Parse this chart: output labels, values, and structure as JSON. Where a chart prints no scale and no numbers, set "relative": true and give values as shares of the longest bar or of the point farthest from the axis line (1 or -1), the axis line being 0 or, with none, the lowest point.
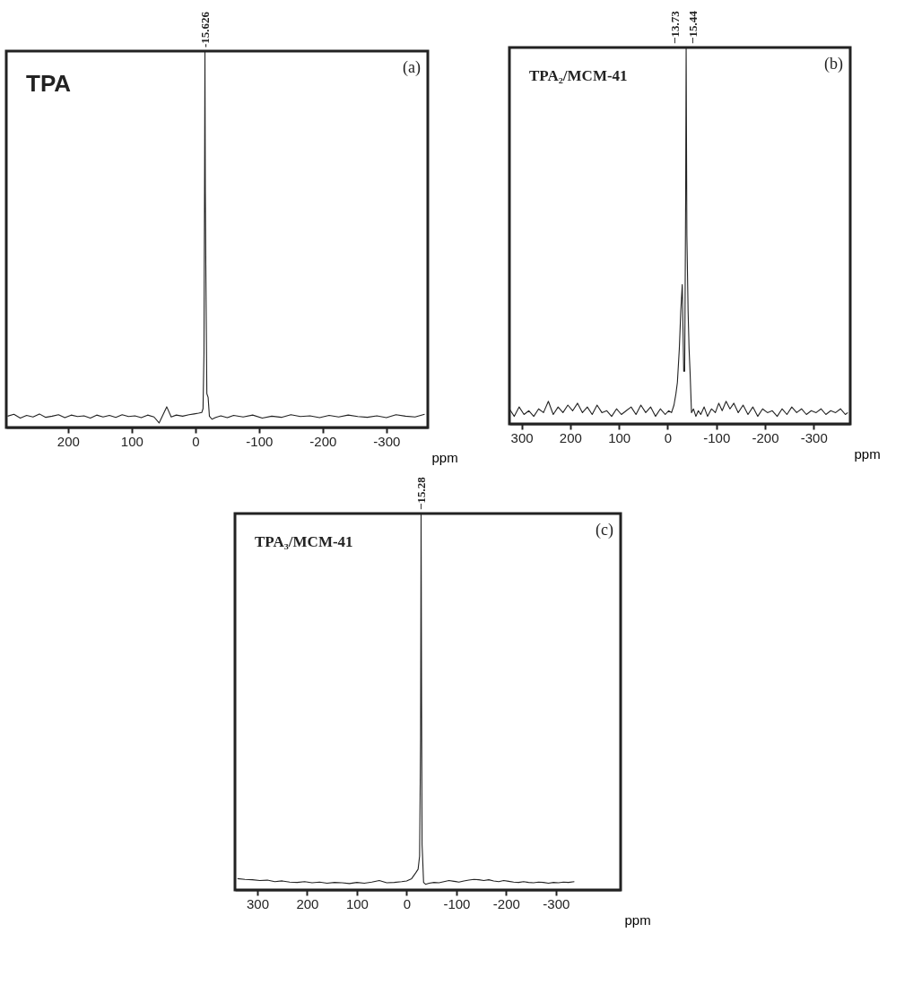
{
  "chart_data": [
    {
      "type": "line",
      "title": "TPA",
      "xlabel": "ppm",
      "relative": true,
      "color": "#222222",
      "xlim": [
        297,
        -365
      ],
      "xticks": [
        200,
        100,
        0,
        -100,
        -200,
        -300
      ],
      "grid": false,
      "annotations": [
        "(a)",
        {
          "text": "-15.626",
          "x": -15,
          "y": 1
        }
      ],
      "x": [
        295,
        285,
        275,
        265,
        255,
        245,
        235,
        225,
        215,
        205,
        195,
        185,
        175,
        165,
        155,
        145,
        135,
        125,
        115,
        105,
        95,
        85,
        75,
        65,
        57,
        52,
        45,
        38,
        30,
        20,
        10,
        2,
        -5,
        -10,
        -12,
        -13.5,
        -14.5,
        -15,
        -15.6,
        -16.5,
        -18,
        -20,
        -22,
        -26,
        -32,
        -40,
        -50,
        -60,
        -75,
        -90,
        -105,
        -120,
        -135,
        -150,
        -165,
        -180,
        -195,
        -210,
        -225,
        -240,
        -255,
        -270,
        -285,
        -300,
        -315,
        -330,
        -345,
        -360
      ],
      "values": [
        0.03,
        0.035,
        0.025,
        0.032,
        0.028,
        0.036,
        0.027,
        0.03,
        0.034,
        0.026,
        0.033,
        0.029,
        0.031,
        0.025,
        0.033,
        0.028,
        0.032,
        0.027,
        0.034,
        0.029,
        0.031,
        0.026,
        0.033,
        0.028,
        0.012,
        0.03,
        0.055,
        0.028,
        0.033,
        0.03,
        0.034,
        0.036,
        0.038,
        0.04,
        0.05,
        0.2,
        0.7,
        1,
        0.63,
        0.4,
        0.09,
        0.08,
        0.03,
        0.022,
        0.027,
        0.031,
        0.026,
        0.032,
        0.028,
        0.033,
        0.025,
        0.03,
        0.027,
        0.034,
        0.029,
        0.031,
        0.026,
        0.032,
        0.028,
        0.033,
        0.029,
        0.027,
        0.031,
        0.026,
        0.034,
        0.03,
        0.028,
        0.035
      ]
    },
    {
      "type": "line",
      "title": "TPA₂/MCM-41",
      "xlabel": "ppm",
      "relative": true,
      "color": "#222222",
      "xlim": [
        325,
        -375
      ],
      "xticks": [
        300,
        200,
        100,
        0,
        -100,
        -200,
        -300
      ],
      "grid": false,
      "annotations": [
        "(b)",
        {
          "text": "−13.73",
          "x": -30,
          "y": 1
        },
        {
          "text": "−15.44",
          "x": -38,
          "y": 1
        }
      ],
      "x": [
        325,
        315,
        305,
        295,
        285,
        275,
        265,
        255,
        245,
        235,
        225,
        215,
        205,
        195,
        185,
        175,
        165,
        155,
        145,
        135,
        125,
        115,
        105,
        95,
        85,
        75,
        65,
        55,
        45,
        35,
        25,
        15,
        5,
        -2,
        -8,
        -13,
        -17,
        -20,
        -24,
        -27,
        -30,
        -33,
        -35,
        -37,
        -38,
        -39.5,
        -42,
        -44,
        -46,
        -49,
        -53,
        -58,
        -63,
        -68,
        -75,
        -82,
        -90,
        -98,
        -105,
        -112,
        -120,
        -128,
        -136,
        -145,
        -155,
        -165,
        -175,
        -185,
        -195,
        -205,
        -215,
        -225,
        -235,
        -245,
        -255,
        -265,
        -275,
        -285,
        -295,
        -305,
        -315,
        -325,
        -335,
        -345,
        -355,
        -365,
        -370
      ],
      "values": [
        0.04,
        0.02,
        0.045,
        0.025,
        0.035,
        0.02,
        0.04,
        0.03,
        0.06,
        0.025,
        0.045,
        0.03,
        0.05,
        0.035,
        0.055,
        0.03,
        0.045,
        0.025,
        0.05,
        0.03,
        0.035,
        0.02,
        0.04,
        0.025,
        0.035,
        0.045,
        0.025,
        0.05,
        0.03,
        0.045,
        0.02,
        0.04,
        0.025,
        0.035,
        0.03,
        0.05,
        0.08,
        0.11,
        0.2,
        0.3,
        0.37,
        0.14,
        0.14,
        0.6,
        1,
        0.5,
        0.3,
        0.2,
        0.14,
        0.03,
        0.04,
        0.02,
        0.035,
        0.025,
        0.045,
        0.02,
        0.04,
        0.03,
        0.055,
        0.035,
        0.06,
        0.04,
        0.055,
        0.03,
        0.05,
        0.025,
        0.045,
        0.02,
        0.04,
        0.03,
        0.035,
        0.02,
        0.04,
        0.025,
        0.045,
        0.03,
        0.04,
        0.025,
        0.035,
        0.03,
        0.04,
        0.025,
        0.035,
        0.03,
        0.04,
        0.025,
        0.03
      ]
    },
    {
      "type": "line",
      "title": "TPA₃/MCM-41",
      "xlabel": "ppm",
      "relative": true,
      "color": "#222222",
      "xlim": [
        345,
        -430
      ],
      "xticks": [
        300,
        200,
        100,
        0,
        -100,
        -200,
        -300
      ],
      "grid": false,
      "annotations": [
        "(c)",
        {
          "text": "−15.28",
          "x": -29,
          "y": 1
        }
      ],
      "x": [
        340,
        325,
        310,
        295,
        280,
        265,
        250,
        235,
        220,
        205,
        190,
        175,
        160,
        145,
        130,
        115,
        100,
        85,
        70,
        55,
        40,
        25,
        10,
        0,
        -10,
        -18,
        -23,
        -26,
        -28,
        -29,
        -30,
        -31,
        -32,
        -34,
        -38,
        -45,
        -55,
        -65,
        -75,
        -85,
        -95,
        -105,
        -115,
        -125,
        -135,
        -145,
        -155,
        -165,
        -175,
        -185,
        -195,
        -205,
        -215,
        -225,
        -235,
        -245,
        -255,
        -265,
        -275,
        -285,
        -295,
        -305,
        -315,
        -325,
        -337
      ],
      "values": [
        0.03,
        0.028,
        0.027,
        0.025,
        0.026,
        0.022,
        0.024,
        0.021,
        0.02,
        0.022,
        0.019,
        0.021,
        0.018,
        0.02,
        0.019,
        0.017,
        0.02,
        0.018,
        0.021,
        0.025,
        0.019,
        0.02,
        0.022,
        0.024,
        0.03,
        0.045,
        0.055,
        0.09,
        0.4,
        1,
        0.5,
        0.12,
        0.09,
        0.02,
        0.015,
        0.018,
        0.02,
        0.019,
        0.022,
        0.025,
        0.023,
        0.021,
        0.024,
        0.026,
        0.028,
        0.027,
        0.025,
        0.027,
        0.024,
        0.022,
        0.025,
        0.023,
        0.021,
        0.02,
        0.022,
        0.02,
        0.019,
        0.021,
        0.02,
        0.018,
        0.02,
        0.019,
        0.021,
        0.02,
        0.022
      ]
    }
  ]
}
